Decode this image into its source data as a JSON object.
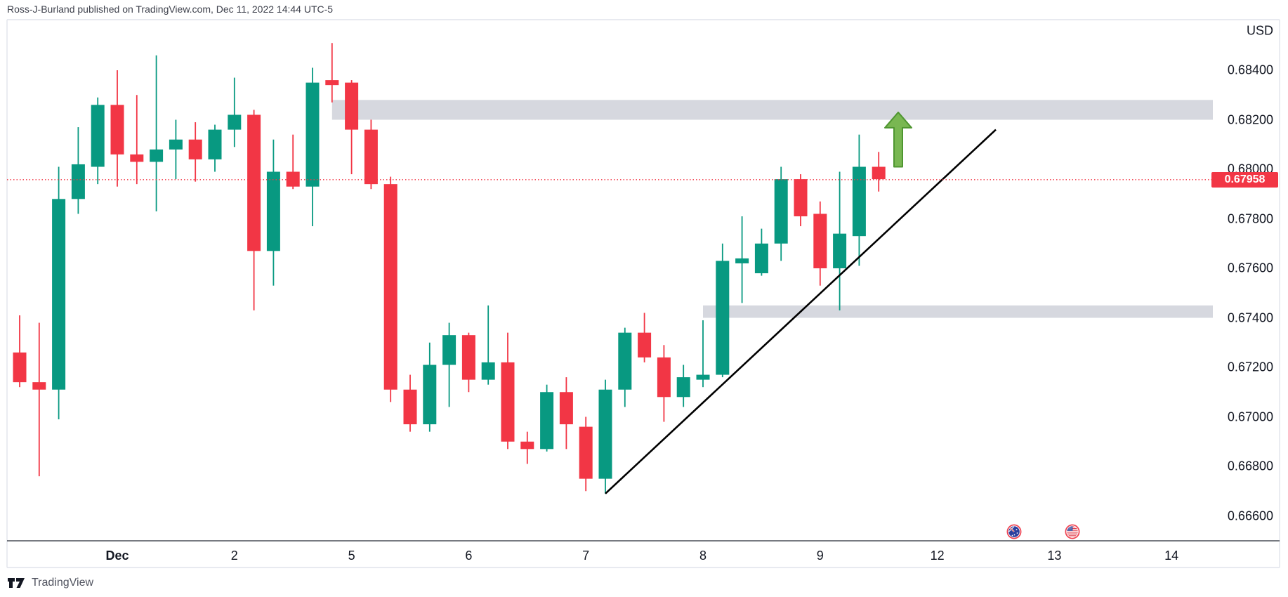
{
  "header": {
    "attribution": "Ross-J-Burland published on TradingView.com, Dec 11, 2022 14:44 UTC-5"
  },
  "price_scale": {
    "currency": "USD",
    "last_price_label": "0.67958",
    "ticks": [
      {
        "label": "0.68400",
        "value": 0.684
      },
      {
        "label": "0.68200",
        "value": 0.682
      },
      {
        "label": "0.68000",
        "value": 0.68
      },
      {
        "label": "0.67800",
        "value": 0.678
      },
      {
        "label": "0.67600",
        "value": 0.676
      },
      {
        "label": "0.67400",
        "value": 0.674
      },
      {
        "label": "0.67200",
        "value": 0.672
      },
      {
        "label": "0.67000",
        "value": 0.67
      },
      {
        "label": "0.66800",
        "value": 0.668
      },
      {
        "label": "0.66600",
        "value": 0.666
      }
    ]
  },
  "time_scale": {
    "ticks": [
      {
        "label": "Dec",
        "index": 5,
        "month": true
      },
      {
        "label": "2",
        "index": 11,
        "month": false
      },
      {
        "label": "5",
        "index": 17,
        "month": false
      },
      {
        "label": "6",
        "index": 23,
        "month": false
      },
      {
        "label": "7",
        "index": 29,
        "month": false
      },
      {
        "label": "8",
        "index": 35,
        "month": false
      },
      {
        "label": "9",
        "index": 41,
        "month": false
      },
      {
        "label": "12",
        "index": 47,
        "month": false
      },
      {
        "label": "13",
        "index": 53,
        "month": false
      },
      {
        "label": "14",
        "index": 59,
        "month": false
      }
    ]
  },
  "chart_data": {
    "type": "candlestick",
    "title": "",
    "ylabel": "USD",
    "ohlc_order": [
      "open",
      "high",
      "low",
      "close"
    ],
    "ylim": [
      0.6655,
      0.6865
    ],
    "grid": false,
    "last_price": 0.67958,
    "candles": [
      [
        0.6726,
        0.6741,
        0.6712,
        0.6714
      ],
      [
        0.6714,
        0.6738,
        0.6676,
        0.6711
      ],
      [
        0.6711,
        0.6801,
        0.6699,
        0.6788
      ],
      [
        0.6788,
        0.6817,
        0.6782,
        0.6802
      ],
      [
        0.6801,
        0.6829,
        0.6794,
        0.6826
      ],
      [
        0.6826,
        0.684,
        0.6793,
        0.6806
      ],
      [
        0.6806,
        0.683,
        0.6794,
        0.6803
      ],
      [
        0.6803,
        0.6846,
        0.6783,
        0.6808
      ],
      [
        0.6808,
        0.682,
        0.6796,
        0.6812
      ],
      [
        0.6812,
        0.6819,
        0.6795,
        0.6804
      ],
      [
        0.6804,
        0.6818,
        0.6799,
        0.6816
      ],
      [
        0.6816,
        0.6837,
        0.6809,
        0.6822
      ],
      [
        0.6822,
        0.6824,
        0.6743,
        0.6767
      ],
      [
        0.6767,
        0.6812,
        0.6753,
        0.6799
      ],
      [
        0.6799,
        0.6814,
        0.6792,
        0.6793
      ],
      [
        0.6793,
        0.6841,
        0.6777,
        0.6835
      ],
      [
        0.6836,
        0.6851,
        0.6827,
        0.6834
      ],
      [
        0.6835,
        0.6836,
        0.6798,
        0.6816
      ],
      [
        0.6816,
        0.682,
        0.6792,
        0.6794
      ],
      [
        0.6794,
        0.6797,
        0.6706,
        0.6711
      ],
      [
        0.6711,
        0.6717,
        0.6694,
        0.6697
      ],
      [
        0.6697,
        0.673,
        0.6694,
        0.6721
      ],
      [
        0.6721,
        0.6738,
        0.6704,
        0.6733
      ],
      [
        0.6733,
        0.6734,
        0.671,
        0.6715
      ],
      [
        0.6715,
        0.6745,
        0.6713,
        0.6722
      ],
      [
        0.6722,
        0.6734,
        0.6687,
        0.669
      ],
      [
        0.669,
        0.6694,
        0.6681,
        0.6687
      ],
      [
        0.6687,
        0.6713,
        0.6686,
        0.671
      ],
      [
        0.671,
        0.6716,
        0.6687,
        0.6697
      ],
      [
        0.6696,
        0.67,
        0.667,
        0.6675
      ],
      [
        0.6675,
        0.6715,
        0.6669,
        0.6711
      ],
      [
        0.6711,
        0.6736,
        0.6704,
        0.6734
      ],
      [
        0.6734,
        0.6742,
        0.6722,
        0.6724
      ],
      [
        0.6724,
        0.6729,
        0.6698,
        0.6708
      ],
      [
        0.6708,
        0.6721,
        0.6704,
        0.6716
      ],
      [
        0.6715,
        0.6739,
        0.6712,
        0.6717
      ],
      [
        0.6717,
        0.677,
        0.6716,
        0.6763
      ],
      [
        0.6762,
        0.6781,
        0.6746,
        0.6764
      ],
      [
        0.6758,
        0.6776,
        0.6757,
        0.677
      ],
      [
        0.677,
        0.6801,
        0.6763,
        0.6796
      ],
      [
        0.6796,
        0.6798,
        0.6777,
        0.6781
      ],
      [
        0.6782,
        0.6787,
        0.6753,
        0.676
      ],
      [
        0.676,
        0.6799,
        0.6743,
        0.6774
      ],
      [
        0.6773,
        0.6814,
        0.6761,
        0.6801
      ],
      [
        0.6801,
        0.6807,
        0.6791,
        0.6796
      ]
    ],
    "annotations": {
      "supply_zone": {
        "price_top": 0.6828,
        "price_bottom": 0.682,
        "start_index": 16
      },
      "demand_zone": {
        "price_top": 0.6745,
        "price_bottom": 0.674,
        "start_index": 35
      },
      "trend_line": {
        "index1": 30,
        "price1": 0.6669,
        "index2": 50,
        "price2": 0.6816
      },
      "up_arrow": {
        "index": 45,
        "tip_price": 0.6823,
        "base_price": 0.6801
      },
      "current_price_line": {
        "price": 0.67958
      },
      "event_flags": [
        {
          "country": "australia",
          "x": 1444
        },
        {
          "country": "usa",
          "x": 1527
        }
      ]
    }
  },
  "colors": {
    "up": "#089981",
    "down": "#f23645",
    "zone": "#d6d8df",
    "trend_line": "#000000",
    "price_line": "#f23645",
    "badge_bg": "#f23645",
    "badge_text": "#ffffff",
    "arrow_fill": "#79b752",
    "arrow_stroke": "#4f9631",
    "frame": "#e0e3eb",
    "axis_line": "#262b36",
    "flag_ring": "#ef4352"
  },
  "footer": {
    "brand": "TradingView"
  }
}
